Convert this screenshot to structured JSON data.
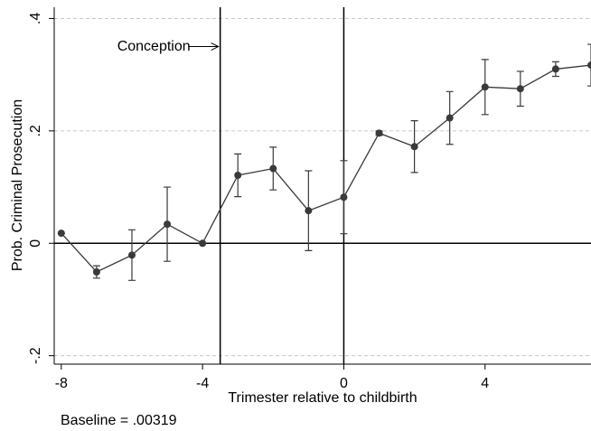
{
  "chart_data": {
    "type": "errorline",
    "x_label": "Trimester relative to childbirth",
    "y_label": "Prob. Criminal Prosecution",
    "x": [
      -8,
      -7,
      -6,
      -5,
      -4,
      -3,
      -2,
      -1,
      0,
      1,
      2,
      3,
      4,
      5,
      6,
      7
    ],
    "values": [
      0.018,
      -0.051,
      -0.021,
      0.034,
      0.0,
      0.121,
      0.133,
      0.058,
      0.082,
      0.196,
      0.172,
      0.223,
      0.278,
      0.275,
      0.31,
      0.317
    ],
    "errors": [
      0.0,
      0.011,
      0.045,
      0.066,
      0.0,
      0.038,
      0.038,
      0.071,
      0.065,
      0.004,
      0.046,
      0.047,
      0.049,
      0.031,
      0.013,
      0.037
    ],
    "color": "#3a3a3a",
    "xlim": [
      -8.2,
      7
    ],
    "ylim": [
      -0.215,
      0.42
    ],
    "xticks": [
      -8,
      -4,
      0,
      4
    ],
    "yticks": [
      {
        "value": -0.2,
        "label": "-.2"
      },
      {
        "value": 0,
        "label": "0"
      },
      {
        "value": 0.2,
        "label": ".2"
      },
      {
        "value": 0.4,
        "label": ".4"
      }
    ],
    "grid": true,
    "vlines": [
      -3.5,
      0
    ],
    "hline": 0,
    "annotation": {
      "text": "Conception",
      "x": -3.5,
      "y": 0.35
    },
    "note": "Baseline = .00319"
  }
}
